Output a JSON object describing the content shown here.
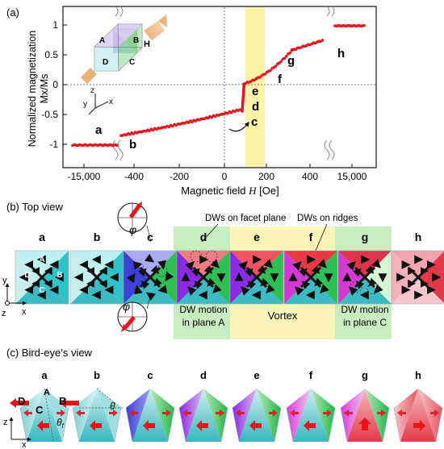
{
  "panel_a": {
    "label": "(a)",
    "ylabel_line1": "Normalized magnetization",
    "ylabel_line2": "Mx/Ms",
    "xlabel_pre": "Magnetic field ",
    "xlabel_var": "H",
    "xlabel_unit": " [Oe]",
    "xticks": [
      "-15,000",
      "-400",
      "-200",
      "0",
      "200",
      "400",
      "15,000"
    ],
    "yticks": [
      "1",
      "0.5",
      "0",
      "-0.5",
      "-1"
    ],
    "point_letters": [
      "a",
      "b",
      "c",
      "d",
      "e",
      "f",
      "g",
      "h"
    ],
    "inset_faces": [
      "A",
      "B",
      "C",
      "D"
    ],
    "inset_field": "H",
    "axes": [
      "x",
      "y",
      "z"
    ]
  },
  "panel_b": {
    "label": "(b) Top view",
    "callout_facet": "DWs on facet plane",
    "callout_ridges": "DWs on ridges",
    "columns": [
      "a",
      "b",
      "c",
      "d",
      "e",
      "f",
      "g",
      "h"
    ],
    "face_letters": [
      "A",
      "B",
      "C",
      "D"
    ],
    "phi": "φ",
    "region_A_line1": "DW motion",
    "region_A_line2": "in plane A",
    "region_vortex": "Vortex",
    "region_C_line1": "DW motion",
    "region_C_line2": "in plane C",
    "axes": [
      "x",
      "y",
      "z"
    ]
  },
  "panel_c": {
    "label": "(c) Bird-eye’s view",
    "columns": [
      "a",
      "b",
      "c",
      "d",
      "e",
      "f",
      "g",
      "h"
    ],
    "face_letters": [
      "D",
      "B",
      "C",
      "A"
    ],
    "theta": "θ",
    "theta_f": "θ",
    "theta_f_sub": "f",
    "axes": [
      "x",
      "z"
    ]
  },
  "colors": {
    "data": "#e8141c",
    "highlight": "#fbf3a6",
    "green_region": "#c9edc0",
    "yellow_region": "#fbf5b8"
  }
}
